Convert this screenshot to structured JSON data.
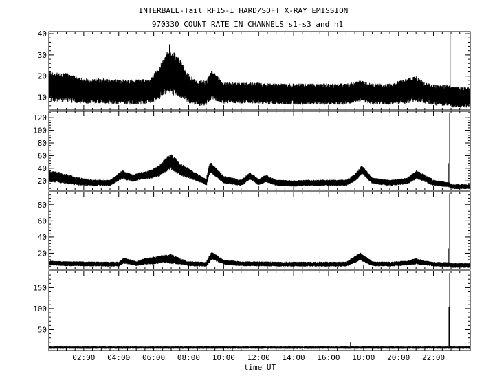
{
  "title": "INTERBALL-Tail RF15-I HARD/SOFT X-RAY EMISSION",
  "subtitle": "970330  COUNT RATE IN CHANNELS s1-s3 and h1",
  "xlabel": "time UT",
  "chart_data": {
    "type": "line",
    "title": "INTERBALL-Tail RF15-I HARD/SOFT X-RAY EMISSION",
    "subtitle": "970330  COUNT RATE IN CHANNELS s1-s3 and h1",
    "xlabel": "time UT",
    "x_unit": "hours UT",
    "xlim": [
      0,
      24.1
    ],
    "x_tick_values": [
      2,
      4,
      6,
      8,
      10,
      12,
      14,
      16,
      18,
      20,
      22
    ],
    "x_tick_labels": [
      "02:00",
      "04:00",
      "06:00",
      "08:00",
      "10:00",
      "12:00",
      "14:00",
      "16:00",
      "18:00",
      "20:00",
      "22:00"
    ],
    "panels": [
      {
        "ylim": [
          4,
          41
        ],
        "y_ticks": [
          10,
          20,
          30,
          40
        ],
        "x": [
          0.0,
          1.0,
          2.0,
          3.0,
          4.0,
          5.0,
          5.8,
          6.3,
          6.8,
          7.0,
          7.5,
          8.0,
          8.5,
          9.0,
          9.3,
          10.0,
          11.0,
          12.0,
          13.0,
          14.0,
          15.0,
          16.0,
          17.0,
          17.8,
          18.5,
          19.5,
          20.5,
          21.0,
          21.5,
          22.0,
          22.8,
          22.95,
          23.1,
          24.1
        ],
        "center": [
          15,
          14.5,
          13,
          13,
          12.5,
          12.5,
          13,
          17,
          22,
          22,
          19,
          14,
          12,
          12,
          16,
          12,
          12,
          12,
          11.5,
          11.5,
          11.5,
          11.5,
          11.5,
          13,
          11.5,
          11.5,
          13,
          14,
          12,
          11,
          11,
          11,
          10,
          10
        ],
        "spread": [
          7,
          7,
          6,
          6,
          6,
          6,
          6,
          8,
          10,
          11,
          9,
          7,
          6,
          6,
          7,
          5,
          5,
          5,
          5,
          5,
          5,
          5,
          5,
          5,
          5,
          5,
          6,
          6,
          5,
          5,
          5,
          5,
          5,
          5
        ],
        "spikes": [
          {
            "x": 22.95,
            "value": 40
          },
          {
            "x": 6.9,
            "value": 35
          }
        ]
      },
      {
        "ylim": [
          5,
          130
        ],
        "y_ticks": [
          20,
          40,
          60,
          80,
          100,
          120
        ],
        "x": [
          0.0,
          0.5,
          1.5,
          2.5,
          3.5,
          4.2,
          4.8,
          5.2,
          5.8,
          6.3,
          6.8,
          7.0,
          7.5,
          8.0,
          8.5,
          9.0,
          9.2,
          10.0,
          11.0,
          11.5,
          12.0,
          12.4,
          13.0,
          14.0,
          15.0,
          16.0,
          17.0,
          17.5,
          17.9,
          18.5,
          19.5,
          20.5,
          21.0,
          21.5,
          22.0,
          22.8,
          22.9,
          23.1,
          24.1
        ],
        "center": [
          27,
          26,
          20,
          17,
          17,
          30,
          24,
          28,
          30,
          36,
          48,
          50,
          38,
          32,
          25,
          18,
          42,
          22,
          17,
          28,
          18,
          24,
          17,
          16,
          17,
          17,
          17,
          25,
          38,
          20,
          17,
          20,
          30,
          24,
          17,
          14,
          14,
          11,
          11
        ],
        "spread": [
          9,
          9,
          7,
          5,
          5,
          7,
          6,
          6,
          7,
          9,
          12,
          13,
          10,
          8,
          6,
          5,
          9,
          6,
          5,
          6,
          5,
          6,
          5,
          5,
          5,
          5,
          5,
          6,
          7,
          5,
          5,
          5,
          7,
          6,
          5,
          4,
          4,
          4,
          4
        ],
        "spikes": [
          {
            "x": 22.92,
            "value": 128
          },
          {
            "x": 22.85,
            "value": 48
          }
        ]
      },
      {
        "ylim": [
          0,
          96
        ],
        "y_ticks": [
          20,
          40,
          60,
          80
        ],
        "x": [
          0.0,
          1.0,
          2.0,
          3.0,
          4.0,
          4.3,
          5.0,
          5.5,
          6.0,
          6.5,
          7.0,
          7.5,
          8.0,
          9.0,
          9.3,
          10.0,
          11.0,
          12.0,
          13.0,
          14.0,
          15.0,
          16.0,
          17.0,
          17.8,
          18.5,
          19.5,
          20.5,
          21.0,
          21.5,
          22.0,
          22.8,
          22.9,
          23.1,
          24.1
        ],
        "center": [
          8,
          7,
          7,
          6.5,
          6.5,
          11,
          7,
          10,
          11,
          13,
          13,
          10,
          7,
          6.5,
          17,
          9,
          7,
          7,
          6.5,
          6.5,
          6.5,
          6.5,
          6.5,
          16,
          7,
          6.5,
          8,
          10,
          8,
          6.5,
          6,
          6,
          5,
          5
        ],
        "spread": [
          3,
          3,
          3,
          3,
          3,
          4,
          3,
          4,
          5,
          5,
          6,
          4,
          3,
          3,
          5,
          3,
          3,
          3,
          3,
          3,
          3,
          3,
          3,
          5,
          3,
          3,
          3,
          4,
          3,
          3,
          3,
          3,
          3,
          3
        ],
        "spikes": [
          {
            "x": 22.92,
            "value": 94
          },
          {
            "x": 22.85,
            "value": 26
          }
        ]
      },
      {
        "ylim": [
          0,
          190
        ],
        "y_ticks": [
          50,
          100,
          150
        ],
        "x": [
          0.0,
          2.0,
          4.0,
          6.0,
          8.0,
          10.0,
          12.0,
          14.0,
          16.0,
          17.2,
          17.3,
          18.0,
          20.0,
          22.0,
          22.85,
          23.0,
          24.1
        ],
        "center": [
          7,
          7,
          7,
          7,
          7,
          7,
          7,
          7,
          7,
          7,
          7,
          7,
          7,
          7,
          7,
          7,
          7
        ],
        "spread": [
          3,
          3,
          3,
          3,
          3,
          3,
          3,
          3,
          3,
          3,
          3,
          3,
          3,
          3,
          3,
          3,
          3
        ],
        "spikes": [
          {
            "x": 22.92,
            "value": 185
          },
          {
            "x": 22.88,
            "value": 105
          },
          {
            "x": 17.25,
            "value": 20
          }
        ]
      }
    ]
  }
}
